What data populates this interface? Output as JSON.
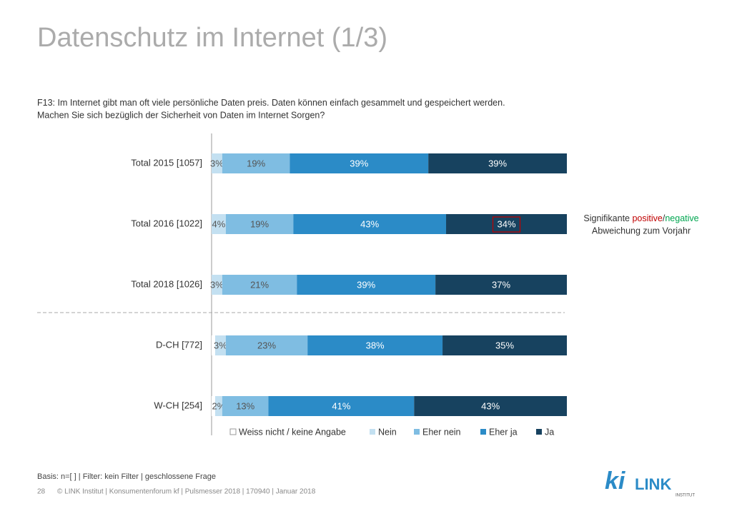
{
  "chart_data": {
    "type": "stacked-bar-horizontal",
    "title": "Datenschutz im Internet (1/3)",
    "question": {
      "label": "F13:",
      "lines": [
        "Im Internet gibt man oft viele persönliche Daten preis. Daten können einfach gesammelt und gespeichert werden.",
        "Machen Sie sich bezüglich der Sicherheit von Daten im Internet Sorgen?"
      ]
    },
    "categories": [
      "Total 2015 [1057]",
      "Total 2016 [1022]",
      "Total 2018 [1026]",
      "D-CH [772]",
      "W-CH [254]"
    ],
    "xlim": [
      0,
      100
    ],
    "series": [
      {
        "name": "Weiss nicht / keine Angabe",
        "color": "#ffffff",
        "values": [
          0,
          0,
          0,
          1,
          1
        ]
      },
      {
        "name": "Nein",
        "color": "#c3e0f1",
        "values": [
          3,
          4,
          3,
          3,
          2
        ],
        "value_labels": [
          "3%",
          "4%",
          "3%",
          "3%",
          "2%"
        ]
      },
      {
        "name": "Eher nein",
        "color": "#7fbde2",
        "values": [
          19,
          19,
          21,
          23,
          13
        ],
        "value_labels": [
          "19%",
          "19%",
          "21%",
          "23%",
          "13%"
        ]
      },
      {
        "name": "Eher ja",
        "color": "#2b8bc7",
        "values": [
          39,
          43,
          39,
          38,
          41
        ],
        "value_labels": [
          "39%",
          "43%",
          "39%",
          "38%",
          "41%"
        ]
      },
      {
        "name": "Ja",
        "color": "#17425f",
        "values": [
          39,
          34,
          37,
          35,
          43
        ],
        "value_labels": [
          "39%",
          "34%",
          "37%",
          "35%",
          "43%"
        ],
        "significant": [
          false,
          true,
          false,
          false,
          false
        ]
      }
    ],
    "note": {
      "prefix": "Signifikante",
      "positive": "positive",
      "positive_color": "#c00000",
      "separator": "/",
      "negative": "negative",
      "negative_color": "#00a650",
      "line2": "Abweichung zum Vorjahr"
    }
  },
  "footer": {
    "basis": "Basis: n=[ ] | Filter: kein Filter | geschlossene Frage",
    "page": "28",
    "copyright": "© LINK Institut | Konsumentenforum kf | Pulsmesser 2018 | 170940 | Januar 2018"
  },
  "logo": {
    "mark": "ki",
    "name": "LINK",
    "sub": "INSTITUT"
  }
}
